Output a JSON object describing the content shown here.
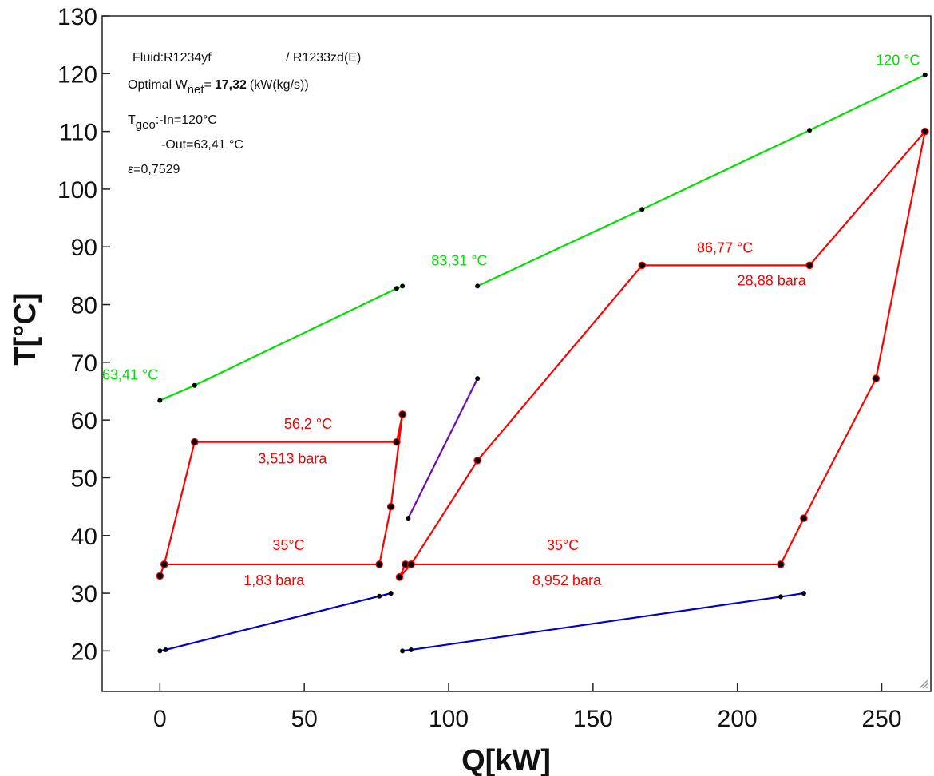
{
  "chart_data": {
    "type": "line",
    "xlabel": "Q[kW]",
    "ylabel": "T[°C]",
    "xlim": [
      -20,
      267
    ],
    "ylim": [
      13,
      130
    ],
    "xticks": [
      0,
      50,
      100,
      150,
      200,
      250
    ],
    "yticks": [
      20,
      30,
      40,
      50,
      60,
      70,
      80,
      90,
      100,
      110,
      120,
      130
    ],
    "grid": false,
    "info": {
      "fluid_label": "Fluid:",
      "fluid_1": "R1234yf",
      "fluid_2": "/ R1233zd(E)",
      "wnet_prefix": "Optimal W",
      "wnet_sub": "net",
      "wnet_eq": "=",
      "wnet_value": "17,32",
      "wnet_unit": "(kW(kg/s))",
      "tgeo_T": "T",
      "tgeo_sub": "geo",
      "tgeo_in": ":-In=120°C",
      "tgeo_out": "-Out=63,41 °C",
      "epsilon": "ε=0,7529"
    },
    "colors": {
      "geo": "#00e000",
      "cycle": "#ff0000",
      "link": "#6a0dad",
      "cooling": "#0000cc",
      "marker": "#000000"
    },
    "series": [
      {
        "role": "geo",
        "points": [
          [
            0,
            63.4
          ],
          [
            12,
            66
          ],
          [
            82,
            82.8
          ],
          [
            84,
            83.2
          ]
        ]
      },
      {
        "role": "geo",
        "points": [
          [
            110,
            83.2
          ],
          [
            167,
            96.5
          ],
          [
            225,
            110.2
          ],
          [
            265,
            119.8
          ]
        ]
      },
      {
        "role": "cycle",
        "closed": true,
        "points": [
          [
            0,
            33
          ],
          [
            1.5,
            35
          ],
          [
            12,
            56.2
          ],
          [
            82,
            56.2
          ],
          [
            84,
            61
          ],
          [
            80,
            45
          ],
          [
            76,
            35
          ],
          [
            1.5,
            35
          ]
        ]
      },
      {
        "role": "cycle",
        "closed": true,
        "points": [
          [
            83,
            32.8
          ],
          [
            85,
            35
          ],
          [
            87,
            35
          ],
          [
            110,
            53
          ],
          [
            167,
            86.8
          ],
          [
            225,
            86.8
          ],
          [
            265,
            110
          ],
          [
            248,
            67.2
          ],
          [
            223,
            43
          ],
          [
            215,
            35
          ],
          [
            87,
            35
          ]
        ]
      },
      {
        "role": "link",
        "points": [
          [
            86,
            43
          ],
          [
            110,
            67.2
          ]
        ]
      },
      {
        "role": "cooling",
        "points": [
          [
            0,
            20
          ],
          [
            2,
            20.2
          ],
          [
            76,
            29.5
          ],
          [
            80,
            30
          ]
        ]
      },
      {
        "role": "cooling",
        "points": [
          [
            84,
            20
          ],
          [
            87,
            20.2
          ],
          [
            215,
            29.4
          ],
          [
            223,
            30
          ]
        ]
      }
    ],
    "annotations": [
      {
        "text": "120  °C",
        "x": 248,
        "y": 121.5,
        "color": "geo"
      },
      {
        "text": "83,31  °C",
        "x": 94,
        "y": 86.8,
        "color": "geo"
      },
      {
        "text": "63,41  °C",
        "x": -20,
        "y": 67,
        "color": "geo"
      },
      {
        "text": "86,77  °C",
        "x": 186,
        "y": 89,
        "color": "cycle"
      },
      {
        "text": "28,88  bara",
        "x": 200,
        "y": 83.3,
        "color": "cycle"
      },
      {
        "text": "56,2   °C",
        "x": 43,
        "y": 58.5,
        "color": "cycle"
      },
      {
        "text": "3,513    bara",
        "x": 34,
        "y": 52.5,
        "color": "cycle"
      },
      {
        "text": "35°C",
        "x": 39,
        "y": 37.5,
        "color": "cycle"
      },
      {
        "text": "1,83     bara",
        "x": 29,
        "y": 31.4,
        "color": "cycle"
      },
      {
        "text": "35°C",
        "x": 134,
        "y": 37.5,
        "color": "cycle"
      },
      {
        "text": "8,952   bara",
        "x": 129,
        "y": 31.4,
        "color": "cycle"
      }
    ]
  }
}
